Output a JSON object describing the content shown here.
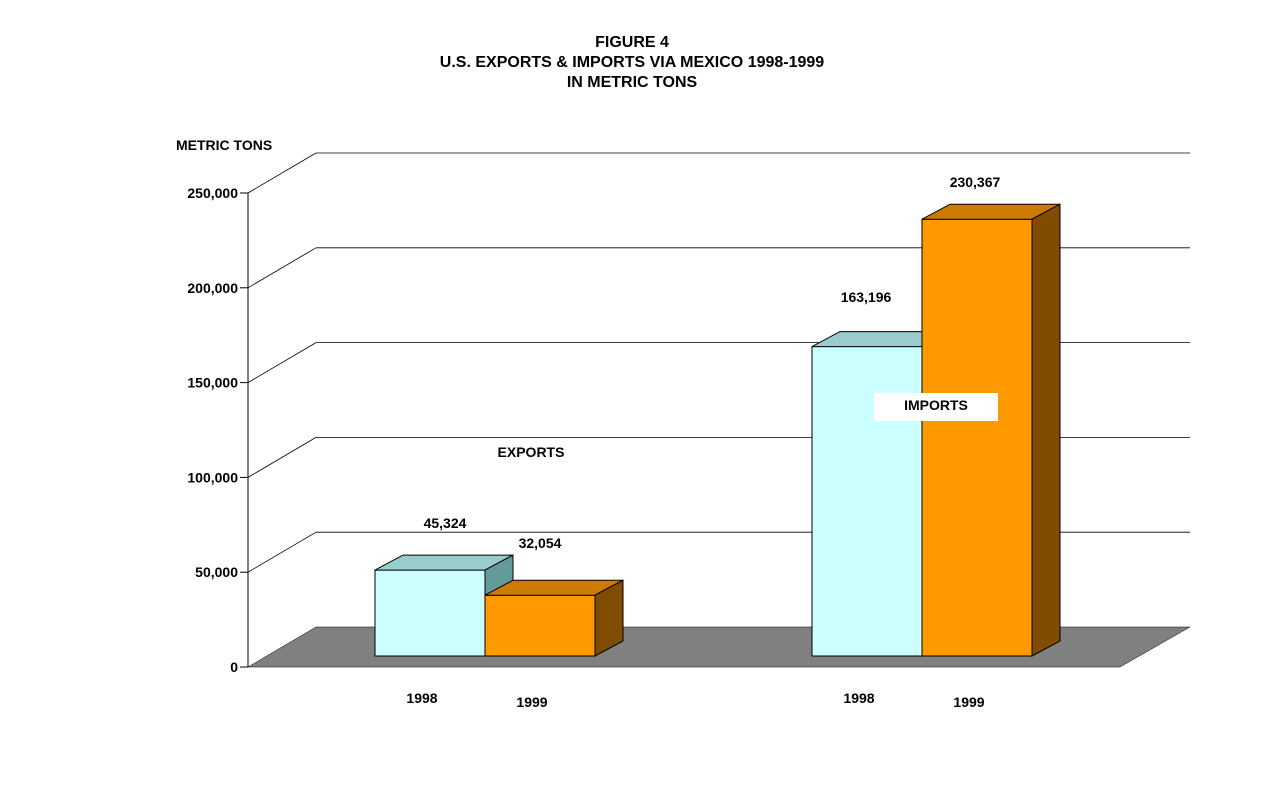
{
  "chart_data": {
    "type": "bar",
    "title_lines": [
      "FIGURE 4",
      "U.S. EXPORTS & IMPORTS VIA MEXICO 1998-1999",
      "IN METRIC TONS"
    ],
    "ylabel": "METRIC TONS",
    "ylim": [
      0,
      250000
    ],
    "yticks": [
      0,
      50000,
      100000,
      150000,
      200000,
      250000
    ],
    "ytick_labels": [
      "0",
      "50,000",
      "100,000",
      "150,000",
      "200,000",
      "250,000"
    ],
    "grid": true,
    "three_d": true,
    "groups": [
      {
        "label": "EXPORTS",
        "bars": [
          {
            "category": "1998",
            "value": 45324,
            "value_label": "45,324"
          },
          {
            "category": "1999",
            "value": 32054,
            "value_label": "32,054"
          }
        ]
      },
      {
        "label": "IMPORTS",
        "bars": [
          {
            "category": "1998",
            "value": 163196,
            "value_label": "163,196"
          },
          {
            "category": "1999",
            "value": 230367,
            "value_label": "230,367"
          }
        ]
      }
    ],
    "colors": {
      "1998_front": "#ccffff",
      "1998_top": "#99cccc",
      "1998_side": "#669999",
      "1999_front": "#ff9900",
      "1999_top": "#cc7a00",
      "1999_side": "#804c00",
      "floor": "#808080",
      "grid": "#000000"
    }
  }
}
